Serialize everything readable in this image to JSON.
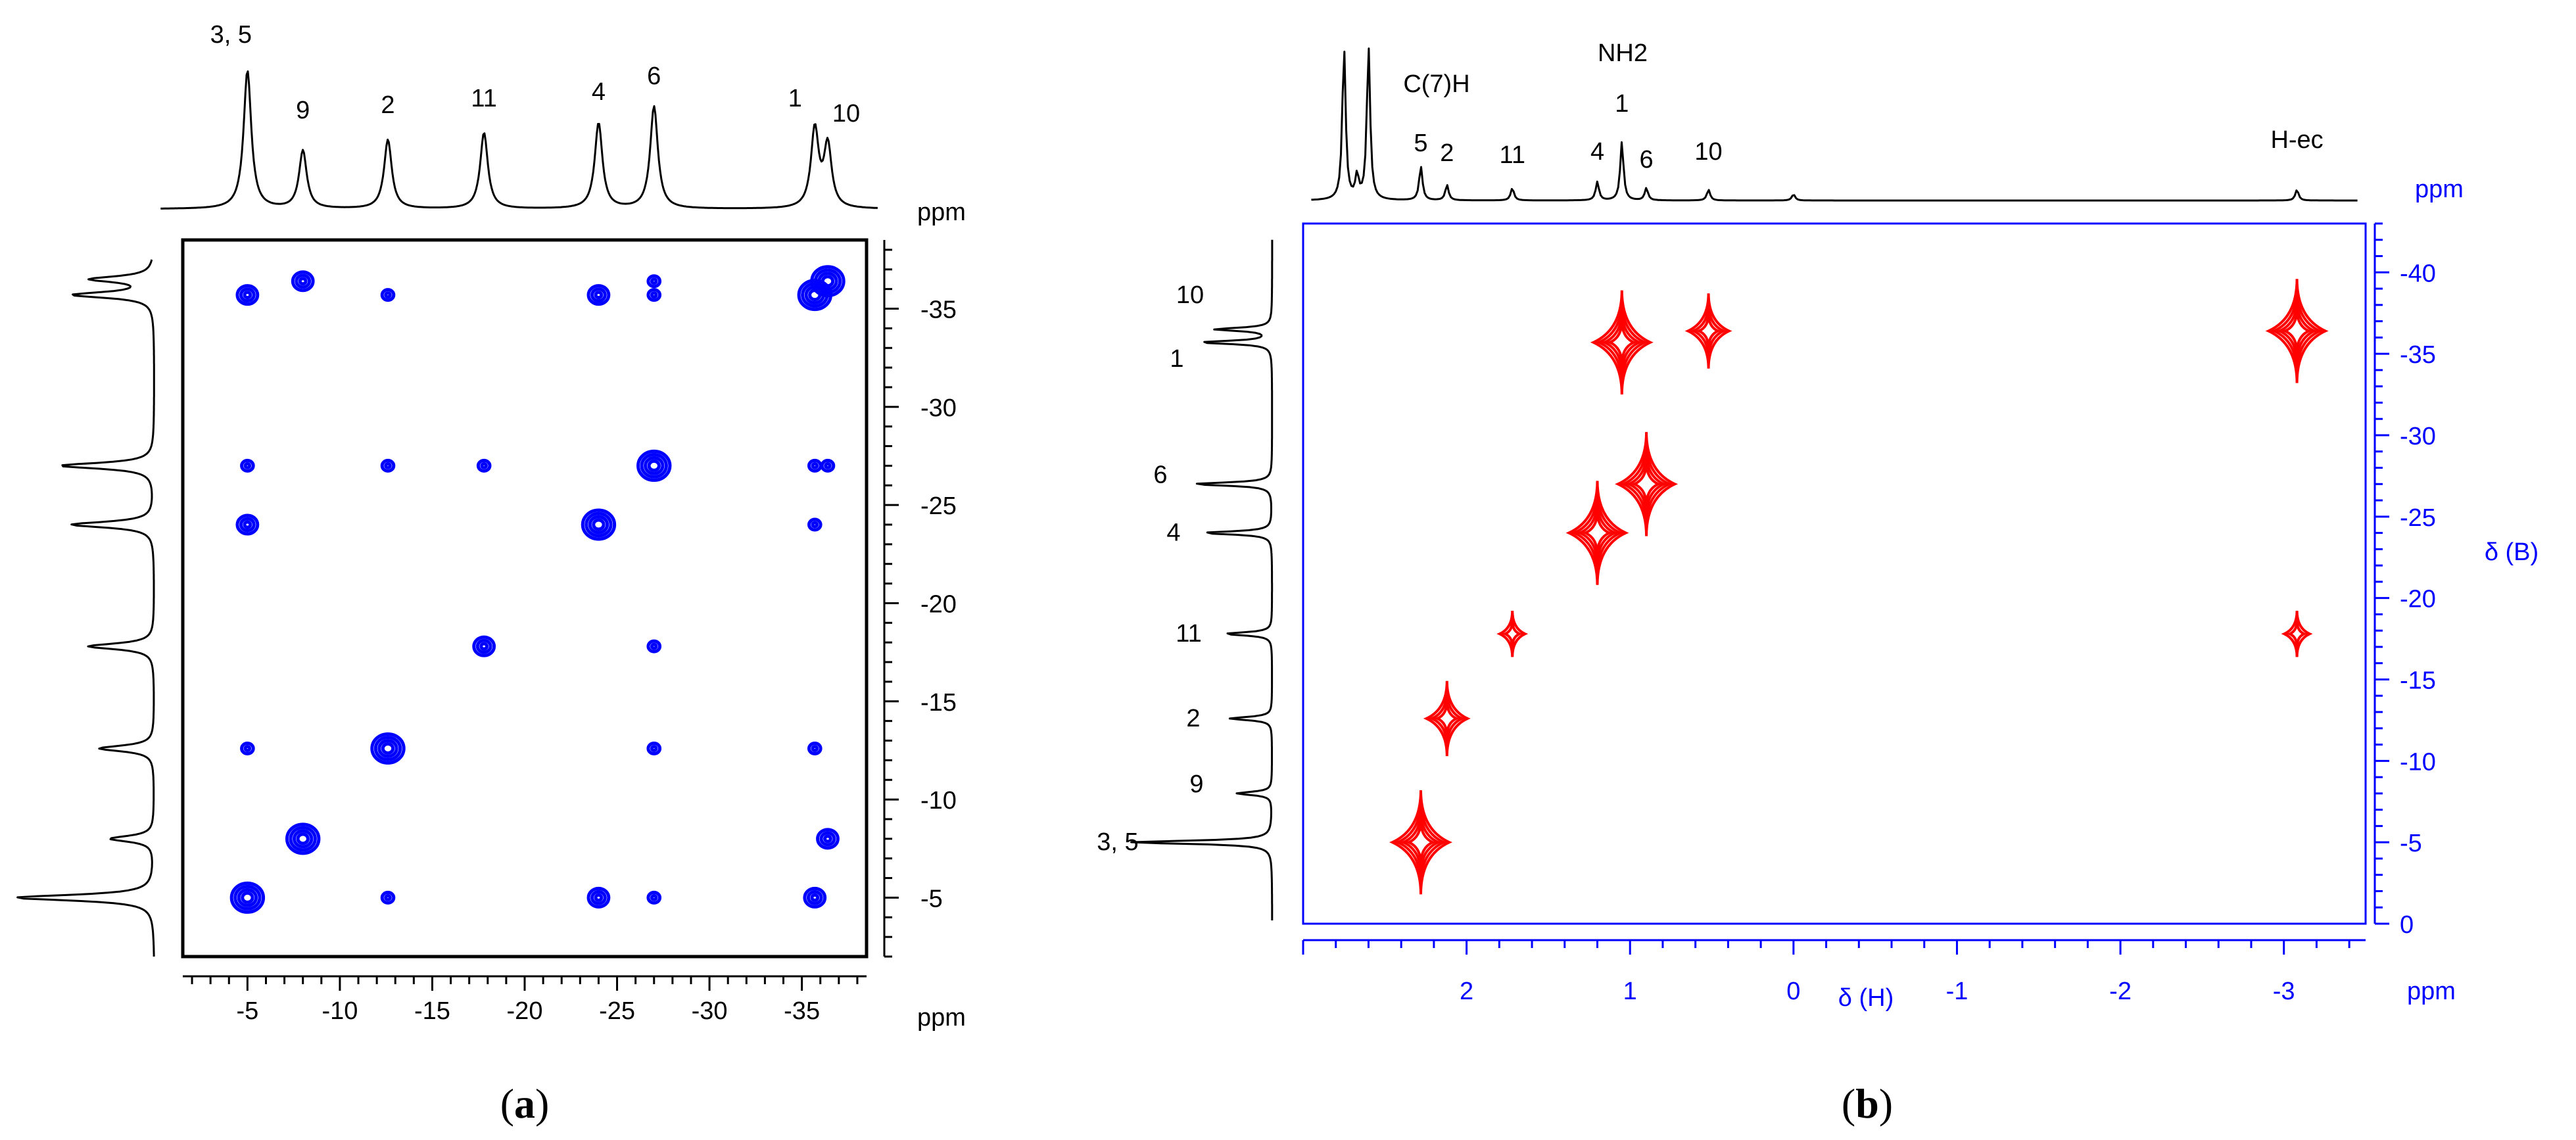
{
  "chart_data": [
    {
      "type": "scatter",
      "panel_caption": "(a)",
      "caption_letter": "a",
      "xlabel": "ppm",
      "ylabel": "ppm",
      "xlim": [
        -1.5,
        -38.5
      ],
      "ylim": [
        -2.0,
        -38.5
      ],
      "x_ticks": [
        -5,
        -10,
        -15,
        -20,
        -25,
        -30,
        -35
      ],
      "y_ticks": [
        -5,
        -10,
        -15,
        -20,
        -25,
        -30,
        -35
      ],
      "x_tick_labels": [
        "-5",
        "-10",
        "-15",
        "-20",
        "-25",
        "-30",
        "-35"
      ],
      "y_tick_labels": [
        "-5",
        "-10",
        "-15",
        "-20",
        "-25",
        "-30",
        "-35"
      ],
      "top_projection_peaks": [
        {
          "label": "3, 5",
          "shift": -5.0,
          "height": 1.0
        },
        {
          "label": "9",
          "shift": -8.0,
          "height": 0.42
        },
        {
          "label": "2",
          "shift": -12.6,
          "height": 0.5
        },
        {
          "label": "11",
          "shift": -17.8,
          "height": 0.55
        },
        {
          "label": "4",
          "shift": -24.0,
          "height": 0.62
        },
        {
          "label": "6",
          "shift": -27.0,
          "height": 0.74
        },
        {
          "label": "1",
          "shift": -35.7,
          "height": 0.57
        },
        {
          "label": "10",
          "shift": -36.4,
          "height": 0.45
        }
      ],
      "left_projection_peaks": [
        {
          "shift": -5.0,
          "height": 1.0
        },
        {
          "shift": -8.0,
          "height": 0.32
        },
        {
          "shift": -12.6,
          "height": 0.4
        },
        {
          "shift": -17.8,
          "height": 0.48
        },
        {
          "shift": -24.0,
          "height": 0.6
        },
        {
          "shift": -27.0,
          "height": 0.68
        },
        {
          "shift": -35.7,
          "height": 0.58
        },
        {
          "shift": -36.5,
          "height": 0.45
        }
      ],
      "series": [
        {
          "name": "cross peaks",
          "color": "#0000ff",
          "points": [
            {
              "x": -5.0,
              "y": -35.7,
              "size": 2
            },
            {
              "x": -8.0,
              "y": -36.4,
              "size": 2
            },
            {
              "x": -12.6,
              "y": -35.7,
              "size": 1
            },
            {
              "x": -24.0,
              "y": -35.7,
              "size": 2
            },
            {
              "x": -27.0,
              "y": -35.7,
              "size": 1
            },
            {
              "x": -27.0,
              "y": -36.4,
              "size": 1
            },
            {
              "x": -35.7,
              "y": -35.7,
              "size": 3
            },
            {
              "x": -36.4,
              "y": -36.4,
              "size": 3
            },
            {
              "x": -5.0,
              "y": -27.0,
              "size": 1
            },
            {
              "x": -12.6,
              "y": -27.0,
              "size": 1
            },
            {
              "x": -17.8,
              "y": -27.0,
              "size": 1
            },
            {
              "x": -27.0,
              "y": -27.0,
              "size": 3
            },
            {
              "x": -35.7,
              "y": -27.0,
              "size": 1
            },
            {
              "x": -36.4,
              "y": -27.0,
              "size": 1
            },
            {
              "x": -5.0,
              "y": -24.0,
              "size": 2
            },
            {
              "x": -24.0,
              "y": -24.0,
              "size": 3
            },
            {
              "x": -35.7,
              "y": -24.0,
              "size": 1
            },
            {
              "x": -17.8,
              "y": -17.8,
              "size": 2
            },
            {
              "x": -27.0,
              "y": -17.8,
              "size": 1
            },
            {
              "x": -5.0,
              "y": -12.6,
              "size": 1
            },
            {
              "x": -12.6,
              "y": -12.6,
              "size": 3
            },
            {
              "x": -27.0,
              "y": -12.6,
              "size": 1
            },
            {
              "x": -35.7,
              "y": -12.6,
              "size": 1
            },
            {
              "x": -8.0,
              "y": -8.0,
              "size": 3
            },
            {
              "x": -36.4,
              "y": -8.0,
              "size": 2
            },
            {
              "x": -5.0,
              "y": -5.0,
              "size": 3
            },
            {
              "x": -12.6,
              "y": -5.0,
              "size": 1
            },
            {
              "x": -24.0,
              "y": -5.0,
              "size": 2
            },
            {
              "x": -27.0,
              "y": -5.0,
              "size": 1
            },
            {
              "x": -35.7,
              "y": -5.0,
              "size": 2
            }
          ]
        }
      ]
    },
    {
      "type": "scatter",
      "panel_caption": "(b)",
      "caption_letter": "b",
      "xlabel": "δ (H)",
      "ylabel": "δ (B)",
      "x_unit_label": "ppm",
      "y_unit_label": "ppm",
      "xlim": [
        3.0,
        -3.5
      ],
      "ylim": [
        0,
        -43
      ],
      "x_ticks": [
        2,
        1,
        0,
        -1,
        -2,
        -3
      ],
      "y_ticks": [
        0,
        -5,
        -10,
        -15,
        -20,
        -25,
        -30,
        -35,
        -40
      ],
      "x_tick_labels": [
        "2",
        "1",
        "0",
        "-1",
        "-2",
        "-3"
      ],
      "y_tick_labels": [
        "0",
        "-5",
        "-10",
        "-15",
        "-20",
        "-25",
        "-30",
        "-35",
        "-40"
      ],
      "top_projection_peaks": [
        {
          "label": "",
          "shift": 2.75,
          "height": 1.0
        },
        {
          "label": "",
          "shift": 2.67,
          "height": 0.15
        },
        {
          "label": "",
          "shift": 2.6,
          "height": 1.0
        },
        {
          "label": "5",
          "shift": 2.28,
          "height": 0.22
        },
        {
          "label": "2",
          "shift": 2.12,
          "height": 0.1
        },
        {
          "label": "11",
          "shift": 1.72,
          "height": 0.08
        },
        {
          "label": "4",
          "shift": 1.2,
          "height": 0.12
        },
        {
          "label": "1",
          "shift": 1.05,
          "height": 0.38
        },
        {
          "label": "6",
          "shift": 0.9,
          "height": 0.08
        },
        {
          "label": "10",
          "shift": 0.52,
          "height": 0.07
        },
        {
          "label": "",
          "shift": 0.0,
          "height": 0.04
        },
        {
          "label": "H-ec",
          "shift": -3.08,
          "height": 0.07
        }
      ],
      "top_annotations": [
        "C(7)H",
        "NH2"
      ],
      "left_projection_peaks": [
        {
          "label": "3, 5",
          "shift": -5.0,
          "height": 1.0
        },
        {
          "label": "9",
          "shift": -8.0,
          "height": 0.25
        },
        {
          "label": "2",
          "shift": -12.6,
          "height": 0.3
        },
        {
          "label": "11",
          "shift": -17.8,
          "height": 0.33
        },
        {
          "label": "4",
          "shift": -24.0,
          "height": 0.48
        },
        {
          "label": "6",
          "shift": -27.0,
          "height": 0.55
        },
        {
          "label": "1",
          "shift": -35.7,
          "height": 0.5
        },
        {
          "label": "10",
          "shift": -36.5,
          "height": 0.4
        }
      ],
      "series": [
        {
          "name": "cross peaks",
          "color": "#ff0000",
          "points": [
            {
              "x": 2.28,
              "y": -5.0,
              "size": 3
            },
            {
              "x": 2.12,
              "y": -12.6,
              "size": 2
            },
            {
              "x": 1.72,
              "y": -17.8,
              "size": 1
            },
            {
              "x": -3.08,
              "y": -17.8,
              "size": 1
            },
            {
              "x": 1.2,
              "y": -24.0,
              "size": 3
            },
            {
              "x": 0.9,
              "y": -27.0,
              "size": 3
            },
            {
              "x": 1.05,
              "y": -35.7,
              "size": 3
            },
            {
              "x": 0.52,
              "y": -36.4,
              "size": 2
            },
            {
              "x": -3.08,
              "y": -36.4,
              "size": 3
            }
          ]
        }
      ]
    }
  ],
  "colors": {
    "panel_a_axes": "#000000",
    "panel_b_axes": "#0000ff",
    "panel_a_peaks": "#0000ff",
    "panel_b_peaks": "#ff0000"
  }
}
